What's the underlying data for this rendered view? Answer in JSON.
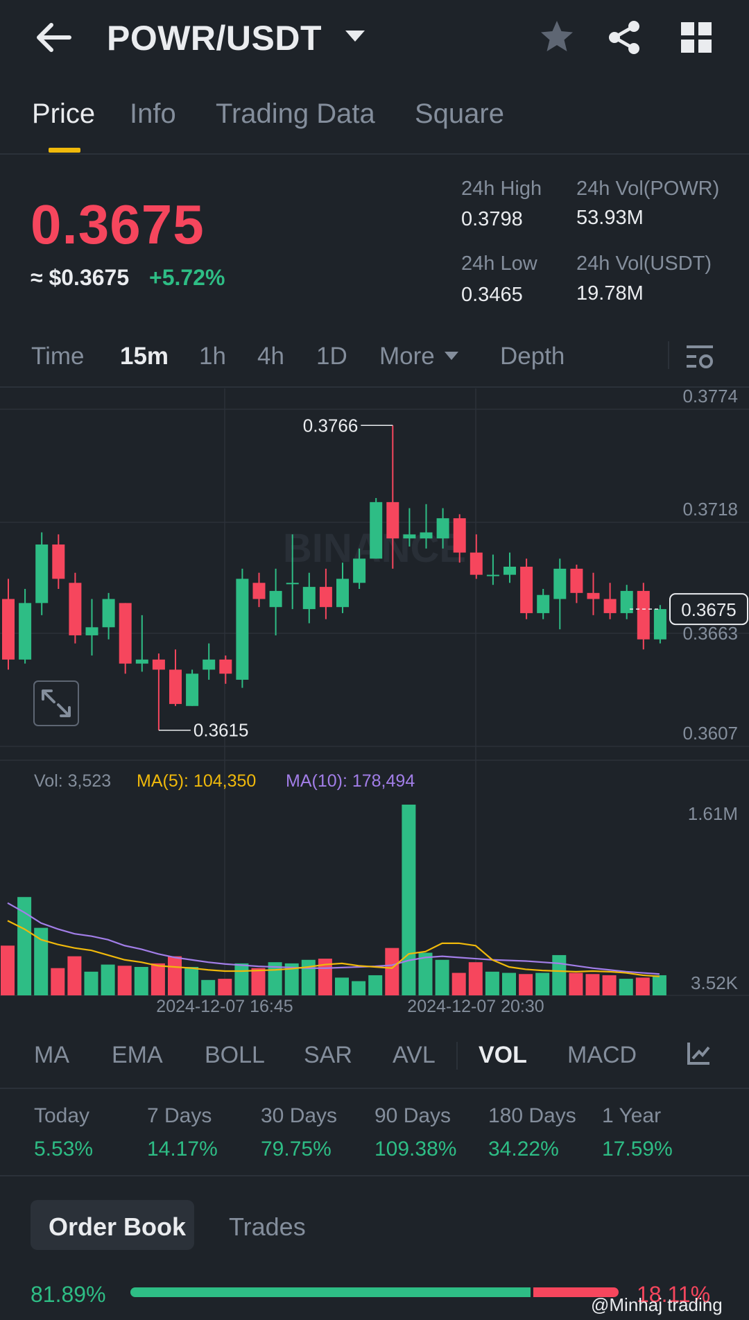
{
  "header": {
    "pair": "POWR/USDT"
  },
  "tabs": [
    {
      "label": "Price",
      "active": true
    },
    {
      "label": "Info"
    },
    {
      "label": "Trading Data"
    },
    {
      "label": "Square"
    }
  ],
  "price": {
    "last": "0.3675",
    "approx": "≈ $0.3675",
    "change": "+5.72%",
    "high_label": "24h High",
    "high": "0.3798",
    "low_label": "24h Low",
    "low": "0.3465",
    "vol_base_label": "24h Vol(POWR)",
    "vol_base": "53.93M",
    "vol_quote_label": "24h Vol(USDT)",
    "vol_quote": "19.78M"
  },
  "intervals": {
    "time": "Time",
    "m15": "15m",
    "h1": "1h",
    "h4": "4h",
    "d1": "1D",
    "more": "More",
    "depth": "Depth"
  },
  "chart_data": {
    "type": "candlestick",
    "price_axis": [
      "0.3774",
      "0.3718",
      "0.3663",
      "0.3607"
    ],
    "ylim": [
      0.3607,
      0.3774
    ],
    "current_price_tag": "0.3675",
    "max_label": "0.3766",
    "min_label": "0.3615",
    "time_labels": [
      "2024-12-07 16:45",
      "2024-12-07 20:30"
    ],
    "candles": [
      {
        "o": 0.368,
        "h": 0.369,
        "l": 0.3645,
        "c": 0.365
      },
      {
        "o": 0.365,
        "h": 0.3685,
        "l": 0.3648,
        "c": 0.3678
      },
      {
        "o": 0.3678,
        "h": 0.3713,
        "l": 0.3672,
        "c": 0.3707
      },
      {
        "o": 0.3707,
        "h": 0.3712,
        "l": 0.3685,
        "c": 0.369
      },
      {
        "o": 0.3688,
        "h": 0.3693,
        "l": 0.3658,
        "c": 0.3662
      },
      {
        "o": 0.3662,
        "h": 0.368,
        "l": 0.3652,
        "c": 0.3666
      },
      {
        "o": 0.3666,
        "h": 0.3683,
        "l": 0.366,
        "c": 0.368
      },
      {
        "o": 0.3678,
        "h": 0.3678,
        "l": 0.3643,
        "c": 0.3648
      },
      {
        "o": 0.3648,
        "h": 0.3672,
        "l": 0.3644,
        "c": 0.365
      },
      {
        "o": 0.365,
        "h": 0.3653,
        "l": 0.3615,
        "c": 0.3645
      },
      {
        "o": 0.3645,
        "h": 0.3655,
        "l": 0.3627,
        "c": 0.3628
      },
      {
        "o": 0.3627,
        "h": 0.3645,
        "l": 0.3627,
        "c": 0.3643
      },
      {
        "o": 0.3645,
        "h": 0.3658,
        "l": 0.364,
        "c": 0.365
      },
      {
        "o": 0.365,
        "h": 0.3652,
        "l": 0.3638,
        "c": 0.3643
      },
      {
        "o": 0.364,
        "h": 0.3695,
        "l": 0.3636,
        "c": 0.369
      },
      {
        "o": 0.3688,
        "h": 0.3693,
        "l": 0.3676,
        "c": 0.368
      },
      {
        "o": 0.3676,
        "h": 0.3695,
        "l": 0.3662,
        "c": 0.3684
      },
      {
        "o": 0.3688,
        "h": 0.3712,
        "l": 0.3675,
        "c": 0.3688
      },
      {
        "o": 0.3675,
        "h": 0.3693,
        "l": 0.3668,
        "c": 0.3686
      },
      {
        "o": 0.3686,
        "h": 0.3695,
        "l": 0.367,
        "c": 0.3676
      },
      {
        "o": 0.3676,
        "h": 0.3698,
        "l": 0.3673,
        "c": 0.369
      },
      {
        "o": 0.3688,
        "h": 0.3705,
        "l": 0.3685,
        "c": 0.37
      },
      {
        "o": 0.37,
        "h": 0.373,
        "l": 0.37,
        "c": 0.3728
      },
      {
        "o": 0.3728,
        "h": 0.3766,
        "l": 0.3695,
        "c": 0.371
      },
      {
        "o": 0.371,
        "h": 0.3725,
        "l": 0.3706,
        "c": 0.3712
      },
      {
        "o": 0.371,
        "h": 0.3727,
        "l": 0.3705,
        "c": 0.3713
      },
      {
        "o": 0.371,
        "h": 0.3725,
        "l": 0.3705,
        "c": 0.372
      },
      {
        "o": 0.372,
        "h": 0.3722,
        "l": 0.3698,
        "c": 0.3703
      },
      {
        "o": 0.3703,
        "h": 0.3712,
        "l": 0.369,
        "c": 0.3692
      },
      {
        "o": 0.3692,
        "h": 0.3702,
        "l": 0.3687,
        "c": 0.3692
      },
      {
        "o": 0.3692,
        "h": 0.3703,
        "l": 0.3688,
        "c": 0.3696
      },
      {
        "o": 0.3696,
        "h": 0.37,
        "l": 0.367,
        "c": 0.3673
      },
      {
        "o": 0.3673,
        "h": 0.3685,
        "l": 0.367,
        "c": 0.3682
      },
      {
        "o": 0.368,
        "h": 0.37,
        "l": 0.3665,
        "c": 0.3695
      },
      {
        "o": 0.3695,
        "h": 0.3697,
        "l": 0.3678,
        "c": 0.3683
      },
      {
        "o": 0.3683,
        "h": 0.3693,
        "l": 0.3672,
        "c": 0.368
      },
      {
        "o": 0.368,
        "h": 0.3688,
        "l": 0.367,
        "c": 0.3673
      },
      {
        "o": 0.3673,
        "h": 0.3687,
        "l": 0.367,
        "c": 0.3684
      },
      {
        "o": 0.3684,
        "h": 0.3688,
        "l": 0.3655,
        "c": 0.366
      },
      {
        "o": 0.366,
        "h": 0.3677,
        "l": 0.3658,
        "c": 0.3675
      }
    ],
    "volume": {
      "label": "Vol: 3,523",
      "ma5_label": "MA(5): 104,350",
      "ma10_label": "MA(10): 178,494",
      "axis_top": "1.61M",
      "axis_bottom": "3.52K",
      "max": 1610000,
      "values": [
        420000,
        830000,
        570000,
        230000,
        330000,
        200000,
        260000,
        250000,
        240000,
        270000,
        330000,
        240000,
        130000,
        140000,
        270000,
        230000,
        280000,
        270000,
        300000,
        310000,
        150000,
        120000,
        170000,
        400000,
        1610000,
        360000,
        300000,
        190000,
        280000,
        200000,
        190000,
        180000,
        190000,
        340000,
        190000,
        180000,
        170000,
        140000,
        150000,
        170000
      ],
      "ma5": [
        630000,
        560000,
        470000,
        430000,
        400000,
        380000,
        340000,
        300000,
        280000,
        250000,
        240000,
        230000,
        215000,
        205000,
        205000,
        210000,
        215000,
        225000,
        240000,
        260000,
        270000,
        250000,
        240000,
        230000,
        350000,
        370000,
        440000,
        440000,
        420000,
        300000,
        240000,
        220000,
        210000,
        205000,
        200000,
        205000,
        200000,
        190000,
        170000,
        160000
      ],
      "ma10": [
        780000,
        700000,
        610000,
        560000,
        520000,
        500000,
        470000,
        420000,
        390000,
        350000,
        320000,
        300000,
        280000,
        265000,
        255000,
        245000,
        240000,
        235000,
        230000,
        230000,
        235000,
        240000,
        245000,
        255000,
        295000,
        320000,
        330000,
        320000,
        310000,
        300000,
        295000,
        290000,
        280000,
        270000,
        250000,
        230000,
        215000,
        200000,
        190000,
        180000
      ]
    }
  },
  "indicators": {
    "ma": "MA",
    "ema": "EMA",
    "boll": "BOLL",
    "sar": "SAR",
    "avl": "AVL",
    "vol": "VOL",
    "macd": "MACD"
  },
  "performance": [
    {
      "label": "Today",
      "value": "5.53%"
    },
    {
      "label": "7 Days",
      "value": "14.17%"
    },
    {
      "label": "30 Days",
      "value": "79.75%"
    },
    {
      "label": "90 Days",
      "value": "109.38%"
    },
    {
      "label": "180 Days",
      "value": "34.22%"
    },
    {
      "label": "1 Year",
      "value": "17.59%"
    }
  ],
  "orderbook": {
    "tab_order_book": "Order Book",
    "tab_trades": "Trades",
    "buy_pct": "81.89%",
    "sell_pct": "18.11%",
    "buy_ratio": 0.8189
  },
  "watermark": "@Minhaj trading",
  "colors": {
    "up": "#2ebd85",
    "down": "#f6465d",
    "accent": "#f0b90b",
    "ma5": "#f0b90b",
    "ma10": "#a27ee8"
  }
}
